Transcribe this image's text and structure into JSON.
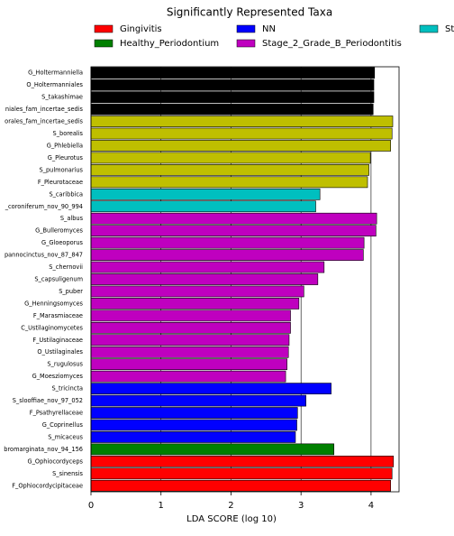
{
  "chart_data": {
    "type": "barh",
    "title": "Significantly Represented Taxa",
    "xlabel": "LDA SCORE (log 10)",
    "categories": [
      "G_Holtermanniella",
      "O_Holtermanniales",
      "S_takashimae",
      "niales_fam_incertae_sedis",
      "orales_fam_incertae_sedis",
      "S_borealis",
      "G_Phlebiella",
      "G_Pleurotus",
      "S_pulmonarius",
      "F_Pleurotaceae",
      "S_caribbica",
      "_coroniferum_nov_90_994",
      "S_albus",
      "G_Bulleromyces",
      "G_Gloeoporus",
      "pannocinctus_nov_87_847",
      "S_chernovii",
      "S_capsuligenum",
      "S_puber",
      "G_Henningsomyces",
      "F_Marasmiaceae",
      "C_Ustilaginomycetes",
      "F_Ustilaginaceae",
      "O_Ustilaginales",
      "S_rugulosus",
      "G_Moesziomyces",
      "S_tricincta",
      "S_slooffiae_nov_97_052",
      "F_Psathyrellaceae",
      "G_Coprinellus",
      "S_micaceus",
      "bromarginata_nov_94_156",
      "G_Ophiocordyceps",
      "S_sinensis",
      "F_Ophiocordycipitaceae"
    ],
    "values": [
      4.05,
      4.04,
      4.04,
      4.03,
      4.31,
      4.3,
      4.28,
      3.99,
      3.97,
      3.95,
      3.27,
      3.21,
      4.08,
      4.07,
      3.9,
      3.89,
      3.33,
      3.24,
      3.04,
      2.97,
      2.85,
      2.85,
      2.83,
      2.82,
      2.8,
      2.78,
      3.43,
      3.07,
      2.95,
      2.94,
      2.92,
      3.47,
      4.32,
      4.3,
      4.28
    ],
    "colors": [
      "#000000",
      "#000000",
      "#000000",
      "#000000",
      "#bfbf00",
      "#bfbf00",
      "#bfbf00",
      "#bfbf00",
      "#bfbf00",
      "#bfbf00",
      "#00bfbf",
      "#00bfbf",
      "#bf00bf",
      "#bf00bf",
      "#bf00bf",
      "#bf00bf",
      "#bf00bf",
      "#bf00bf",
      "#bf00bf",
      "#bf00bf",
      "#bf00bf",
      "#bf00bf",
      "#bf00bf",
      "#bf00bf",
      "#bf00bf",
      "#bf00bf",
      "#0000ff",
      "#0000ff",
      "#0000ff",
      "#0000ff",
      "#0000ff",
      "#008000",
      "#ff0000",
      "#ff0000",
      "#ff0000"
    ],
    "legend": [
      {
        "name": "Gingivitis",
        "color": "#ff0000"
      },
      {
        "name": "Healthy_Periodontium",
        "color": "#008000"
      },
      {
        "name": "NN",
        "color": "#0000ff"
      },
      {
        "name": "Stage_2_Grade_B_Periodontitis",
        "color": "#bf00bf"
      },
      {
        "name": "St",
        "color": "#00bfbf"
      }
    ],
    "xlim": [
      0,
      4.4
    ],
    "xticks": [
      0,
      1,
      2,
      3,
      4
    ],
    "grid": true
  }
}
